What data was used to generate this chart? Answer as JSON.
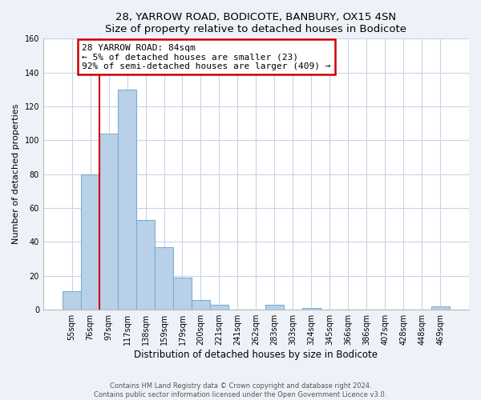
{
  "title": "28, YARROW ROAD, BODICOTE, BANBURY, OX15 4SN",
  "subtitle": "Size of property relative to detached houses in Bodicote",
  "xlabel": "Distribution of detached houses by size in Bodicote",
  "ylabel": "Number of detached properties",
  "bar_labels": [
    "55sqm",
    "76sqm",
    "97sqm",
    "117sqm",
    "138sqm",
    "159sqm",
    "179sqm",
    "200sqm",
    "221sqm",
    "241sqm",
    "262sqm",
    "283sqm",
    "303sqm",
    "324sqm",
    "345sqm",
    "366sqm",
    "386sqm",
    "407sqm",
    "428sqm",
    "448sqm",
    "469sqm"
  ],
  "bar_values": [
    11,
    80,
    104,
    130,
    53,
    37,
    19,
    6,
    3,
    0,
    0,
    3,
    0,
    1,
    0,
    0,
    0,
    0,
    0,
    0,
    2
  ],
  "bar_color": "#b8d0e8",
  "bar_edge_color": "#7aafd4",
  "annotation_title": "28 YARROW ROAD: 84sqm",
  "annotation_line1": "← 5% of detached houses are smaller (23)",
  "annotation_line2": "92% of semi-detached houses are larger (409) →",
  "annotation_box_facecolor": "#ffffff",
  "annotation_box_edgecolor": "#cc0000",
  "property_line_color": "#cc0000",
  "ylim": [
    0,
    160
  ],
  "yticks": [
    0,
    20,
    40,
    60,
    80,
    100,
    120,
    140,
    160
  ],
  "footer_line1": "Contains HM Land Registry data © Crown copyright and database right 2024.",
  "footer_line2": "Contains public sector information licensed under the Open Government Licence v3.0.",
  "bg_color": "#eef2f8",
  "plot_bg_color": "#ffffff",
  "grid_color": "#c8d4e8"
}
